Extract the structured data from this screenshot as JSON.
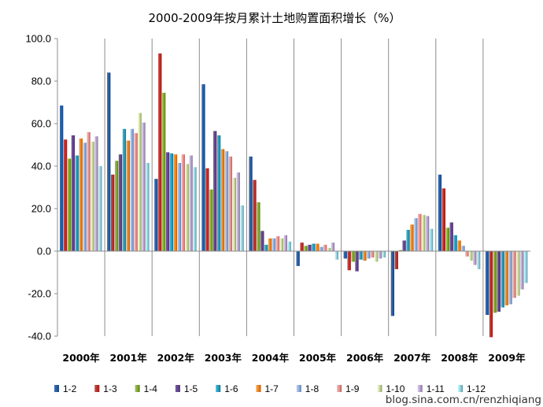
{
  "watermark": "blog.sina.com.cn/renzhiqiang",
  "chart_data": {
    "type": "bar",
    "title": "2000-2009年按月累计土地购置面积增长（%）",
    "xlabel": "",
    "ylabel": "",
    "ylim": [
      -40,
      100
    ],
    "yticks": [
      "100.0",
      "80.0",
      "60.0",
      "40.0",
      "20.0",
      "0.0",
      "-20.0",
      "-40.0"
    ],
    "grid": false,
    "legend_position": "bottom",
    "categories": [
      "2000年",
      "2001年",
      "2002年",
      "2003年",
      "2004年",
      "2005年",
      "2006年",
      "2007年",
      "2008年",
      "2009年"
    ],
    "series": [
      {
        "name": "1-2",
        "color": "#2a5b9c",
        "values": [
          68.5,
          84.0,
          34.0,
          78.5,
          44.5,
          -7.0,
          -3.5,
          -30.5,
          36.0,
          -30.0
        ]
      },
      {
        "name": "1-3",
        "color": "#b4312b",
        "values": [
          52.5,
          36.0,
          93.0,
          39.0,
          33.5,
          4.0,
          -9.0,
          -8.5,
          29.5,
          -40.5
        ]
      },
      {
        "name": "1-4",
        "color": "#7fa434",
        "values": [
          43.5,
          42.5,
          74.5,
          29.0,
          23.0,
          2.5,
          -5.0,
          0.5,
          11.0,
          -29.0
        ]
      },
      {
        "name": "1-5",
        "color": "#61468a",
        "values": [
          54.5,
          45.5,
          46.5,
          56.5,
          9.5,
          3.0,
          -9.5,
          5.0,
          13.5,
          -28.5
        ]
      },
      {
        "name": "1-6",
        "color": "#2d98b4",
        "values": [
          45.0,
          57.5,
          46.0,
          54.5,
          3.0,
          3.5,
          -4.0,
          10.0,
          7.5,
          -26.5
        ]
      },
      {
        "name": "1-7",
        "color": "#ec8228",
        "values": [
          53.0,
          52.0,
          45.5,
          48.0,
          6.0,
          3.5,
          -4.5,
          12.5,
          5.0,
          -25.5
        ]
      },
      {
        "name": "1-8",
        "color": "#8faadc",
        "values": [
          51.0,
          57.5,
          41.5,
          47.0,
          6.0,
          2.0,
          -3.5,
          15.5,
          2.5,
          -25.0
        ]
      },
      {
        "name": "1-9",
        "color": "#e8908d",
        "values": [
          56.0,
          55.5,
          45.5,
          44.5,
          7.0,
          3.0,
          -3.0,
          17.5,
          -2.5,
          -22.0
        ]
      },
      {
        "name": "1-10",
        "color": "#c3d69b",
        "values": [
          51.5,
          65.0,
          41.0,
          34.5,
          6.0,
          1.5,
          -5.0,
          17.0,
          -4.5,
          -21.0
        ]
      },
      {
        "name": "1-11",
        "color": "#b3a2c7",
        "values": [
          54.0,
          60.5,
          45.0,
          37.0,
          7.5,
          4.0,
          -3.5,
          16.5,
          -6.5,
          -18.0
        ]
      },
      {
        "name": "1-12",
        "color": "#93cddd",
        "values": [
          40.0,
          41.5,
          39.5,
          21.5,
          4.5,
          -4.0,
          -3.0,
          10.5,
          -8.5,
          -15.0
        ]
      }
    ]
  }
}
